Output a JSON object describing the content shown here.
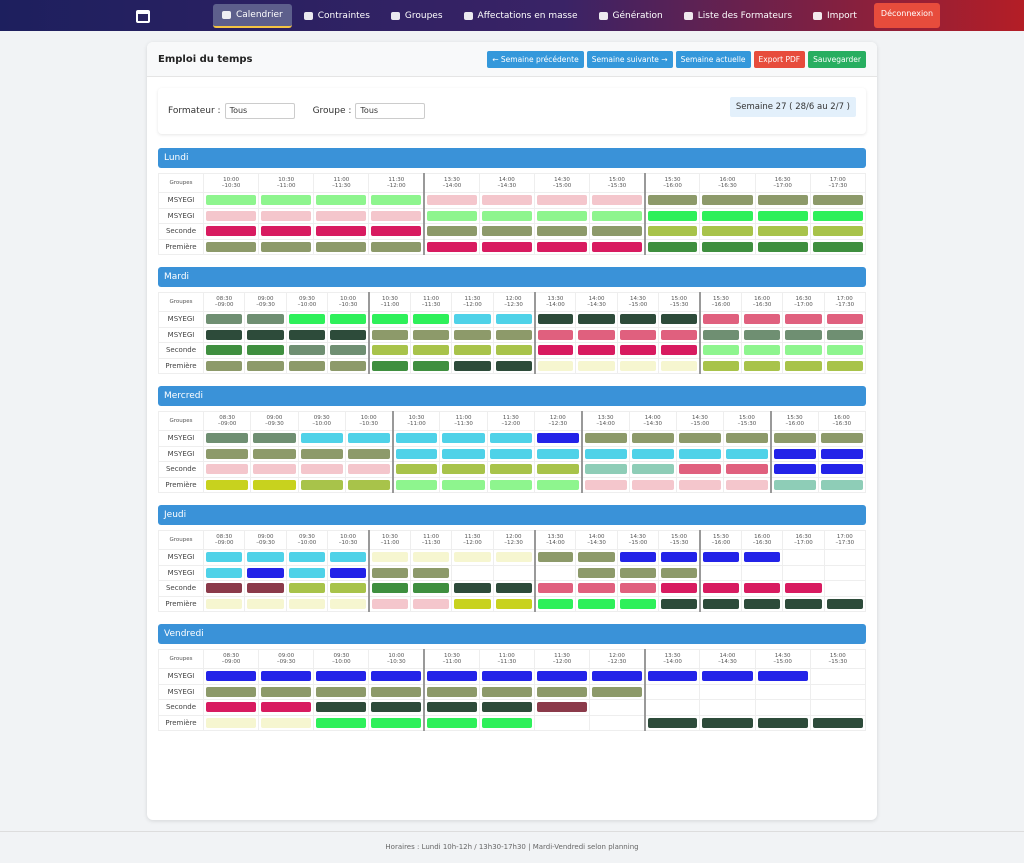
{
  "nav": {
    "items": [
      "Calendrier",
      "Contraintes",
      "Groupes",
      "Affectations en masse",
      "Génération",
      "Liste des Formateurs",
      "Import"
    ],
    "logout": "Déconnexion"
  },
  "header": {
    "title": "Emploi du temps",
    "buttons": [
      "← Semaine précédente",
      "Semaine suivante →",
      "Semaine actuelle",
      "Export PDF",
      "Sauvegarder"
    ]
  },
  "filters": {
    "formateur_label": "Formateur :",
    "formateur_value": "Tous",
    "groupe_label": "Groupe :",
    "groupe_value": "Tous",
    "week": "Semaine 27 ( 28/6 au 2/7 )"
  },
  "table_header": "Groupes",
  "groups": [
    "MSYEGI",
    "MSYEGI",
    "Seconde",
    "Première"
  ],
  "days": [
    {
      "name": "Lundi",
      "slots": [
        "10:00\n–10:30",
        "10:30\n–11:00",
        "11:00\n–11:30",
        "11:30\n–12:00",
        "13:30\n–14:00",
        "14:00\n–14:30",
        "14:30\n–15:00",
        "15:00\n–15:30",
        "15:30\n–16:00",
        "16:00\n–16:30",
        "16:30\n–17:00",
        "17:00\n–17:30"
      ],
      "cells": [
        [
          "#8ef58e",
          "#8ef58e",
          "#8ef58e",
          "#8ef58e",
          "#f4c6cc",
          "#f4c6cc",
          "#f4c6cc",
          "#f4c6cc",
          "#8d9a6a",
          "#8d9a6a",
          "#8d9a6a",
          "#8d9a6a"
        ],
        [
          "#f4c6cc",
          "#f4c6cc",
          "#f4c6cc",
          "#f4c6cc",
          "#8ef58e",
          "#8ef58e",
          "#8ef58e",
          "#8ef58e",
          "#2ef05a",
          "#2ef05a",
          "#2ef05a",
          "#2ef05a"
        ],
        [
          "#d81b60",
          "#d81b60",
          "#d81b60",
          "#d81b60",
          "#8d9a6a",
          "#8d9a6a",
          "#8d9a6a",
          "#8d9a6a",
          "#a8c34a",
          "#a8c34a",
          "#a8c34a",
          "#a8c34a"
        ],
        [
          "#8d9a6a",
          "#8d9a6a",
          "#8d9a6a",
          "#8d9a6a",
          "#d81b60",
          "#d81b60",
          "#d81b60",
          "#d81b60",
          "#3f8f3f",
          "#3f8f3f",
          "#3f8f3f",
          "#3f8f3f"
        ]
      ]
    },
    {
      "name": "Mardi",
      "slots": [
        "08:30\n–09:00",
        "09:00\n–09:30",
        "09:30\n–10:00",
        "10:00\n–10:30",
        "10:30\n–11:00",
        "11:00\n–11:30",
        "11:30\n–12:00",
        "12:00\n–12:30",
        "13:30\n–14:00",
        "14:00\n–14:30",
        "14:30\n–15:00",
        "15:00\n–15:30",
        "15:30\n–16:00",
        "16:00\n–16:30",
        "16:30\n–17:00",
        "17:00\n–17:30"
      ],
      "cells": [
        [
          "#6f8f72",
          "#6f8f72",
          "#2ef05a",
          "#2ef05a",
          "#2ef05a",
          "#2ef05a",
          "#4fd2e8",
          "#4fd2e8",
          "#2d4b3a",
          "#2d4b3a",
          "#2d4b3a",
          "#2d4b3a",
          "#e0607e",
          "#e0607e",
          "#e0607e",
          "#e0607e"
        ],
        [
          "#2d4b3a",
          "#2d4b3a",
          "#2d4b3a",
          "#2d4b3a",
          "#8d9a6a",
          "#8d9a6a",
          "#8d9a6a",
          "#8d9a6a",
          "#e0607e",
          "#e0607e",
          "#e0607e",
          "#e0607e",
          "#6f8f72",
          "#6f8f72",
          "#6f8f72",
          "#6f8f72"
        ],
        [
          "#3f8f3f",
          "#3f8f3f",
          "#6f8f72",
          "#6f8f72",
          "#a8c34a",
          "#a8c34a",
          "#a8c34a",
          "#a8c34a",
          "#d81b60",
          "#d81b60",
          "#d81b60",
          "#d81b60",
          "#8ef58e",
          "#8ef58e",
          "#8ef58e",
          "#8ef58e"
        ],
        [
          "#8d9a6a",
          "#8d9a6a",
          "#8d9a6a",
          "#8d9a6a",
          "#3f8f3f",
          "#3f8f3f",
          "#2d4b3a",
          "#2d4b3a",
          "#f6f6d0",
          "#f6f6d0",
          "#f6f6d0",
          "#f6f6d0",
          "#a8c34a",
          "#a8c34a",
          "#a8c34a",
          "#a8c34a"
        ]
      ]
    },
    {
      "name": "Mercredi",
      "slots": [
        "08:30\n–09:00",
        "09:00\n–09:30",
        "09:30\n–10:00",
        "10:00\n–10:30",
        "10:30\n–11:00",
        "11:00\n–11:30",
        "11:30\n–12:00",
        "12:00\n–12:30",
        "13:30\n–14:00",
        "14:00\n–14:30",
        "14:30\n–15:00",
        "15:00\n–15:30",
        "15:30\n–16:00",
        "16:00\n–16:30"
      ],
      "cells": [
        [
          "#6f8f72",
          "#6f8f72",
          "#4fd2e8",
          "#4fd2e8",
          "#4fd2e8",
          "#4fd2e8",
          "#4fd2e8",
          "#2323e8",
          "#8d9a6a",
          "#8d9a6a",
          "#8d9a6a",
          "#8d9a6a",
          "#8d9a6a",
          "#8d9a6a"
        ],
        [
          "#8d9a6a",
          "#8d9a6a",
          "#8d9a6a",
          "#8d9a6a",
          "#4fd2e8",
          "#4fd2e8",
          "#4fd2e8",
          "#4fd2e8",
          "#4fd2e8",
          "#4fd2e8",
          "#4fd2e8",
          "#4fd2e8",
          "#2323e8",
          "#2323e8"
        ],
        [
          "#f4c6cc",
          "#f4c6cc",
          "#f4c6cc",
          "#f4c6cc",
          "#a8c34a",
          "#a8c34a",
          "#a8c34a",
          "#a8c34a",
          "#8ecdb7",
          "#8ecdb7",
          "#e0607e",
          "#e0607e",
          "#2323e8",
          "#2323e8"
        ],
        [
          "#c8d21e",
          "#c8d21e",
          "#a8c34a",
          "#a8c34a",
          "#8ef58e",
          "#8ef58e",
          "#8ef58e",
          "#8ef58e",
          "#f4c6cc",
          "#f4c6cc",
          "#f4c6cc",
          "#f4c6cc",
          "#8ecdb7",
          "#8ecdb7"
        ]
      ]
    },
    {
      "name": "Jeudi",
      "slots": [
        "08:30\n–09:00",
        "09:00\n–09:30",
        "09:30\n–10:00",
        "10:00\n–10:30",
        "10:30\n–11:00",
        "11:00\n–11:30",
        "11:30\n–12:00",
        "12:00\n–12:30",
        "13:30\n–14:00",
        "14:00\n–14:30",
        "14:30\n–15:00",
        "15:00\n–15:30",
        "15:30\n–16:00",
        "16:00\n–16:30",
        "16:30\n–17:00",
        "17:00\n–17:30"
      ],
      "cells": [
        [
          "#4fd2e8",
          "#4fd2e8",
          "#4fd2e8",
          "#4fd2e8",
          "#f6f6d0",
          "#f6f6d0",
          "#f6f6d0",
          "#f6f6d0",
          "#8d9a6a",
          "#8d9a6a",
          "#2323e8",
          "#2323e8",
          "#2323e8",
          "#2323e8",
          null,
          null
        ],
        [
          "#4fd2e8",
          "#2323e8",
          "#4fd2e8",
          "#2323e8",
          "#8d9a6a",
          "#8d9a6a",
          null,
          null,
          null,
          "#8d9a6a",
          "#8d9a6a",
          "#8d9a6a",
          null,
          null,
          null,
          null
        ],
        [
          "#8b3a4a",
          "#8b3a4a",
          "#a8c34a",
          "#a8c34a",
          "#3f8f3f",
          "#3f8f3f",
          "#2d4b3a",
          "#2d4b3a",
          "#e0607e",
          "#e0607e",
          "#e0607e",
          "#d81b60",
          "#d81b60",
          "#d81b60",
          "#d81b60",
          null
        ],
        [
          "#f6f6d0",
          "#f6f6d0",
          "#f6f6d0",
          "#f6f6d0",
          "#f4c6cc",
          "#f4c6cc",
          "#c8d21e",
          "#c8d21e",
          "#2ef05a",
          "#2ef05a",
          "#2ef05a",
          "#2d4b3a",
          "#2d4b3a",
          "#2d4b3a",
          "#2d4b3a",
          "#2d4b3a"
        ]
      ]
    },
    {
      "name": "Vendredi",
      "slots": [
        "08:30\n–09:00",
        "09:00\n–09:30",
        "09:30\n–10:00",
        "10:00\n–10:30",
        "10:30\n–11:00",
        "11:00\n–11:30",
        "11:30\n–12:00",
        "12:00\n–12:30",
        "13:30\n–14:00",
        "14:00\n–14:30",
        "14:30\n–15:00",
        "15:00\n–15:30"
      ],
      "cells": [
        [
          "#2323e8",
          "#2323e8",
          "#2323e8",
          "#2323e8",
          "#2323e8",
          "#2323e8",
          "#2323e8",
          "#2323e8",
          "#2323e8",
          "#2323e8",
          "#2323e8",
          null
        ],
        [
          "#8d9a6a",
          "#8d9a6a",
          "#8d9a6a",
          "#8d9a6a",
          "#8d9a6a",
          "#8d9a6a",
          "#8d9a6a",
          "#8d9a6a",
          null,
          null,
          null,
          null
        ],
        [
          "#d81b60",
          "#d81b60",
          "#2d4b3a",
          "#2d4b3a",
          "#2d4b3a",
          "#2d4b3a",
          "#8b3a4a",
          null,
          null,
          null,
          null,
          null
        ],
        [
          "#f6f6d0",
          "#f6f6d0",
          "#2ef05a",
          "#2ef05a",
          "#2ef05a",
          "#2ef05a",
          null,
          null,
          "#2d4b3a",
          "#2d4b3a",
          "#2d4b3a",
          "#2d4b3a"
        ]
      ]
    }
  ],
  "footer": "Horaires : Lundi 10h-12h / 13h30-17h30 | Mardi-Vendredi selon planning"
}
